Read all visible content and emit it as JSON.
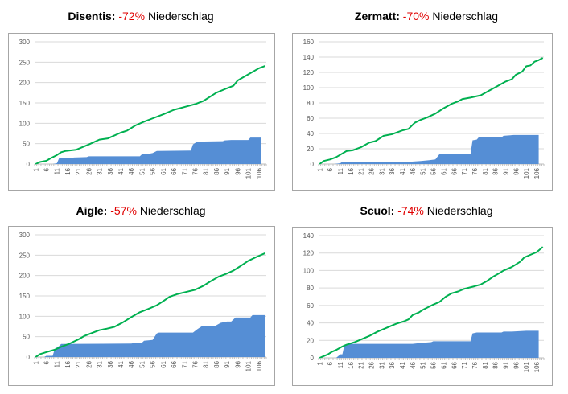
{
  "chart_data": [
    {
      "type": "area+line",
      "title_station": "Disentis:",
      "title_pct": "-72%",
      "title_rest": "Niederschlag",
      "ylim": [
        0,
        300
      ],
      "yticks": [
        0,
        50,
        100,
        150,
        200,
        250,
        300
      ],
      "n": 109,
      "xticks": [
        "1",
        "6",
        "11",
        "16",
        "21",
        "26",
        "31",
        "36",
        "41",
        "46",
        "51",
        "56",
        "61",
        "66",
        "71",
        "76",
        "81",
        "86",
        "91",
        "96",
        "101",
        "106"
      ],
      "area": [
        [
          9,
          0
        ],
        [
          11,
          2
        ],
        [
          12,
          14
        ],
        [
          18,
          15
        ],
        [
          19,
          16
        ],
        [
          25,
          17
        ],
        [
          26,
          19
        ],
        [
          50,
          19
        ],
        [
          51,
          24
        ],
        [
          54,
          25
        ],
        [
          56,
          27
        ],
        [
          58,
          32
        ],
        [
          74,
          33
        ],
        [
          75,
          48
        ],
        [
          77,
          55
        ],
        [
          89,
          56
        ],
        [
          90,
          58
        ],
        [
          93,
          59
        ],
        [
          101,
          59
        ],
        [
          102,
          65
        ],
        [
          107,
          65
        ]
      ],
      "line": [
        [
          1,
          0
        ],
        [
          3,
          5
        ],
        [
          6,
          8
        ],
        [
          8,
          14
        ],
        [
          11,
          22
        ],
        [
          13,
          29
        ],
        [
          15,
          32
        ],
        [
          20,
          35
        ],
        [
          26,
          48
        ],
        [
          31,
          60
        ],
        [
          35,
          63
        ],
        [
          41,
          77
        ],
        [
          44,
          82
        ],
        [
          48,
          95
        ],
        [
          52,
          104
        ],
        [
          56,
          112
        ],
        [
          61,
          122
        ],
        [
          66,
          133
        ],
        [
          71,
          140
        ],
        [
          76,
          147
        ],
        [
          80,
          155
        ],
        [
          86,
          175
        ],
        [
          91,
          186
        ],
        [
          94,
          192
        ],
        [
          96,
          205
        ],
        [
          101,
          220
        ],
        [
          106,
          235
        ],
        [
          109,
          241
        ]
      ]
    },
    {
      "type": "area+line",
      "title_station": "Zermatt:",
      "title_pct": "-70%",
      "title_rest": "Niederschlag",
      "ylim": [
        0,
        160
      ],
      "yticks": [
        0,
        20,
        40,
        60,
        80,
        100,
        120,
        140,
        160
      ],
      "n": 109,
      "xticks": [
        "1",
        "6",
        "11",
        "16",
        "21",
        "26",
        "31",
        "36",
        "41",
        "46",
        "51",
        "56",
        "61",
        "66",
        "71",
        "76",
        "81",
        "86",
        "91",
        "96",
        "101",
        "106"
      ],
      "area": [
        [
          8,
          0
        ],
        [
          11,
          1
        ],
        [
          12,
          3
        ],
        [
          45,
          3
        ],
        [
          50,
          4
        ],
        [
          54,
          5
        ],
        [
          57,
          6
        ],
        [
          59,
          13
        ],
        [
          74,
          13
        ],
        [
          75,
          31
        ],
        [
          77,
          32
        ],
        [
          78,
          35
        ],
        [
          89,
          35
        ],
        [
          90,
          37
        ],
        [
          95,
          38
        ],
        [
          107,
          38
        ]
      ],
      "line": [
        [
          1,
          0
        ],
        [
          3,
          4
        ],
        [
          6,
          6
        ],
        [
          9,
          9
        ],
        [
          14,
          17
        ],
        [
          17,
          18
        ],
        [
          21,
          22
        ],
        [
          25,
          28
        ],
        [
          28,
          30
        ],
        [
          32,
          37
        ],
        [
          36,
          39
        ],
        [
          41,
          44
        ],
        [
          44,
          46
        ],
        [
          47,
          54
        ],
        [
          50,
          58
        ],
        [
          53,
          61
        ],
        [
          57,
          66
        ],
        [
          61,
          73
        ],
        [
          65,
          79
        ],
        [
          68,
          82
        ],
        [
          70,
          85
        ],
        [
          74,
          87
        ],
        [
          79,
          90
        ],
        [
          83,
          96
        ],
        [
          87,
          102
        ],
        [
          91,
          108
        ],
        [
          94,
          111
        ],
        [
          96,
          117
        ],
        [
          99,
          121
        ],
        [
          101,
          128
        ],
        [
          103,
          129
        ],
        [
          105,
          134
        ],
        [
          107,
          136
        ],
        [
          109,
          139
        ]
      ]
    },
    {
      "type": "area+line",
      "title_station": "Aigle:",
      "title_pct": "-57%",
      "title_rest": "Niederschlag",
      "ylim": [
        0,
        300
      ],
      "yticks": [
        0,
        50,
        100,
        150,
        200,
        250,
        300
      ],
      "n": 109,
      "xticks": [
        "1",
        "6",
        "11",
        "16",
        "21",
        "26",
        "31",
        "36",
        "41",
        "46",
        "51",
        "56",
        "61",
        "66",
        "71",
        "76",
        "81",
        "86",
        "91",
        "96",
        "101",
        "106"
      ],
      "area": [
        [
          5,
          0
        ],
        [
          6,
          3
        ],
        [
          9,
          3
        ],
        [
          10,
          20
        ],
        [
          12,
          27
        ],
        [
          13,
          32
        ],
        [
          46,
          33
        ],
        [
          47,
          34
        ],
        [
          51,
          35
        ],
        [
          52,
          40
        ],
        [
          56,
          42
        ],
        [
          58,
          58
        ],
        [
          59,
          60
        ],
        [
          75,
          60
        ],
        [
          77,
          68
        ],
        [
          79,
          75
        ],
        [
          85,
          75
        ],
        [
          86,
          78
        ],
        [
          88,
          84
        ],
        [
          91,
          87
        ],
        [
          93,
          87
        ],
        [
          95,
          97
        ],
        [
          102,
          97
        ],
        [
          103,
          103
        ],
        [
          109,
          103
        ]
      ],
      "line": [
        [
          1,
          0
        ],
        [
          3,
          7
        ],
        [
          6,
          12
        ],
        [
          10,
          18
        ],
        [
          13,
          25
        ],
        [
          17,
          33
        ],
        [
          21,
          43
        ],
        [
          24,
          52
        ],
        [
          28,
          60
        ],
        [
          31,
          66
        ],
        [
          34,
          69
        ],
        [
          38,
          74
        ],
        [
          42,
          85
        ],
        [
          46,
          98
        ],
        [
          50,
          110
        ],
        [
          54,
          118
        ],
        [
          58,
          127
        ],
        [
          61,
          137
        ],
        [
          64,
          148
        ],
        [
          68,
          155
        ],
        [
          72,
          160
        ],
        [
          76,
          165
        ],
        [
          80,
          175
        ],
        [
          83,
          185
        ],
        [
          87,
          197
        ],
        [
          91,
          205
        ],
        [
          94,
          212
        ],
        [
          97,
          222
        ],
        [
          101,
          236
        ],
        [
          105,
          246
        ],
        [
          109,
          255
        ]
      ]
    },
    {
      "type": "area+line",
      "title_station": "Scuol:",
      "title_pct": "-74%",
      "title_rest": "Niederschlag",
      "ylim": [
        0,
        140
      ],
      "yticks": [
        0,
        20,
        40,
        60,
        80,
        100,
        120,
        140
      ],
      "n": 109,
      "xticks": [
        "1",
        "6",
        "11",
        "16",
        "21",
        "26",
        "31",
        "36",
        "41",
        "46",
        "51",
        "56",
        "61",
        "66",
        "71",
        "76",
        "81",
        "86",
        "91",
        "96",
        "101",
        "106"
      ],
      "area": [
        [
          9,
          0
        ],
        [
          11,
          4
        ],
        [
          12,
          4
        ],
        [
          13,
          15
        ],
        [
          15,
          16
        ],
        [
          46,
          16
        ],
        [
          50,
          17
        ],
        [
          55,
          18
        ],
        [
          56,
          19
        ],
        [
          74,
          19
        ],
        [
          75,
          28
        ],
        [
          77,
          29
        ],
        [
          89,
          29
        ],
        [
          90,
          30
        ],
        [
          94,
          30
        ],
        [
          101,
          31
        ],
        [
          107,
          31
        ]
      ],
      "line": [
        [
          1,
          0
        ],
        [
          3,
          2
        ],
        [
          5,
          4
        ],
        [
          7,
          7
        ],
        [
          9,
          9
        ],
        [
          12,
          13
        ],
        [
          14,
          15
        ],
        [
          18,
          18
        ],
        [
          21,
          21
        ],
        [
          25,
          25
        ],
        [
          29,
          30
        ],
        [
          32,
          33
        ],
        [
          36,
          37
        ],
        [
          38,
          39
        ],
        [
          42,
          42
        ],
        [
          44,
          44
        ],
        [
          46,
          49
        ],
        [
          49,
          52
        ],
        [
          51,
          55
        ],
        [
          56,
          61
        ],
        [
          59,
          64
        ],
        [
          62,
          70
        ],
        [
          65,
          74
        ],
        [
          68,
          76
        ],
        [
          71,
          79
        ],
        [
          76,
          82
        ],
        [
          79,
          84
        ],
        [
          82,
          88
        ],
        [
          85,
          93
        ],
        [
          88,
          97
        ],
        [
          90,
          100
        ],
        [
          94,
          104
        ],
        [
          98,
          110
        ],
        [
          100,
          115
        ],
        [
          103,
          118
        ],
        [
          106,
          121
        ],
        [
          109,
          127
        ]
      ]
    }
  ],
  "colors": {
    "area": "#558ed5",
    "line": "#00b050",
    "grid": "#d9d9d9",
    "pct": "#e00000"
  }
}
